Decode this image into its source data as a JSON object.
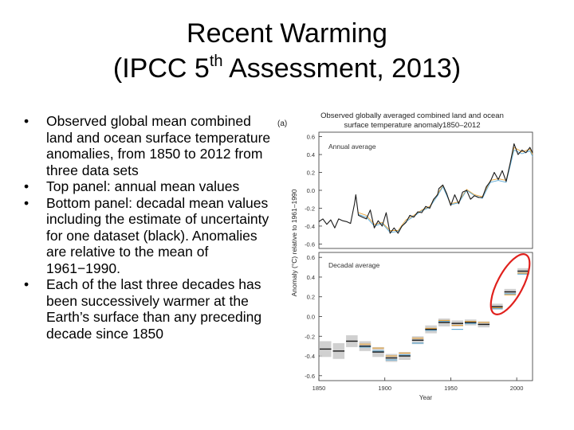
{
  "slide": {
    "title_line1": "Recent Warming",
    "title_line2_pre": "(IPCC 5",
    "title_sup": "th",
    "title_line2_post": " Assessment, 2013)",
    "bullet_char": "•",
    "bullets": [
      "Observed global mean combined land and ocean surface temperature anomalies, from 1850 to 2012 from three data sets",
      "Top panel: annual mean values",
      "Bottom panel: decadal mean values including the estimate of uncertainty for one dataset (black). Anomalies are relative to the mean of 1961−1990.",
      "Each of the last three decades has been successively warmer at the Earth’s surface than any preceding decade since 1850"
    ]
  },
  "colors": {
    "highlight_ellipse": "#e0201c",
    "uncertainty_band": "#c8c8c8",
    "series_black": "#1a1a1a",
    "series_orange": "#e8a33a",
    "series_blue": "#5aa9d6"
  },
  "chart_data": [
    {
      "type": "line",
      "panel_label": "(a)",
      "title": "Observed globally averaged combined land and ocean surface temperature anomaly1850–2012",
      "inset_label": "Annual average",
      "ylabel": "Anomaly (°C) relative to 1961–1990",
      "xlim": [
        1850,
        2012
      ],
      "ylim": [
        -0.65,
        0.65
      ],
      "yticks": [
        -0.6,
        -0.4,
        -0.2,
        0.0,
        0.2,
        0.4,
        0.6
      ],
      "ytick_labels": [
        "-0.6",
        "-0.4",
        "-0.2",
        "0.0",
        "0.2",
        "0.4",
        "0.6"
      ],
      "series": [
        {
          "x": [
            1850,
            1853,
            1856,
            1859,
            1862,
            1865,
            1868,
            1871,
            1874,
            1877,
            1878,
            1880,
            1883,
            1886,
            1889,
            1892,
            1895,
            1898,
            1901,
            1904,
            1907,
            1910,
            1913,
            1916,
            1919,
            1922,
            1925,
            1928,
            1931,
            1934,
            1937,
            1940,
            1941,
            1944,
            1947,
            1950,
            1953,
            1956,
            1959,
            1962,
            1965,
            1968,
            1971,
            1974,
            1977,
            1980,
            1983,
            1986,
            1989,
            1992,
            1995,
            1998,
            2001,
            2004,
            2007,
            2010,
            2012
          ],
          "values": [
            -0.35,
            -0.32,
            -0.38,
            -0.33,
            -0.42,
            -0.32,
            -0.34,
            -0.35,
            -0.37,
            -0.15,
            -0.05,
            -0.28,
            -0.3,
            -0.32,
            -0.22,
            -0.42,
            -0.34,
            -0.4,
            -0.25,
            -0.48,
            -0.42,
            -0.48,
            -0.4,
            -0.36,
            -0.28,
            -0.3,
            -0.24,
            -0.25,
            -0.18,
            -0.2,
            -0.1,
            -0.05,
            0.02,
            0.06,
            -0.04,
            -0.17,
            -0.05,
            -0.15,
            -0.02,
            0.0,
            -0.1,
            -0.06,
            -0.08,
            -0.08,
            0.04,
            0.1,
            0.2,
            0.12,
            0.22,
            0.1,
            0.3,
            0.52,
            0.4,
            0.45,
            0.42,
            0.48,
            0.42
          ]
        },
        {
          "x": [
            1880,
            1886,
            1892,
            1898,
            1904,
            1910,
            1916,
            1922,
            1928,
            1934,
            1940,
            1944,
            1950,
            1956,
            1962,
            1968,
            1974,
            1980,
            1986,
            1992,
            1998,
            2004,
            2010,
            2012
          ],
          "values": [
            -0.25,
            -0.28,
            -0.38,
            -0.36,
            -0.45,
            -0.45,
            -0.33,
            -0.28,
            -0.22,
            -0.18,
            -0.04,
            0.05,
            -0.15,
            -0.13,
            0.01,
            -0.05,
            -0.07,
            0.11,
            0.13,
            0.11,
            0.48,
            0.43,
            0.46,
            0.4
          ]
        },
        {
          "x": [
            1880,
            1886,
            1892,
            1898,
            1904,
            1910,
            1916,
            1922,
            1928,
            1934,
            1940,
            1944,
            1950,
            1956,
            1962,
            1968,
            1974,
            1980,
            1986,
            1992,
            1998,
            2004,
            2010,
            2012
          ],
          "values": [
            -0.27,
            -0.3,
            -0.4,
            -0.37,
            -0.47,
            -0.46,
            -0.35,
            -0.29,
            -0.23,
            -0.19,
            -0.06,
            0.04,
            -0.16,
            -0.14,
            0.0,
            -0.06,
            -0.09,
            0.09,
            0.11,
            0.09,
            0.45,
            0.41,
            0.44,
            0.38
          ]
        }
      ]
    },
    {
      "type": "bar",
      "inset_label": "Decadal average",
      "ylabel": "Anomaly (°C) relative to 1961–1990",
      "xlabel": "Year",
      "xlim": [
        1850,
        2012
      ],
      "xticks": [
        1850,
        1900,
        1950,
        2000
      ],
      "xtick_labels": [
        "1850",
        "1900",
        "1950",
        "2000"
      ],
      "ylim": [
        -0.65,
        0.65
      ],
      "yticks": [
        -0.6,
        -0.4,
        -0.2,
        0.0,
        0.2,
        0.4,
        0.6
      ],
      "ytick_labels": [
        "-0.6",
        "-0.4",
        "-0.2",
        "0.0",
        "0.2",
        "0.4",
        "0.6"
      ],
      "categories": [
        "1850s",
        "1860s",
        "1870s",
        "1880s",
        "1890s",
        "1900s",
        "1910s",
        "1920s",
        "1930s",
        "1940s",
        "1950s",
        "1960s",
        "1970s",
        "1980s",
        "1990s",
        "2000s"
      ],
      "decade_start": [
        1850,
        1860,
        1870,
        1880,
        1890,
        1900,
        1910,
        1920,
        1930,
        1940,
        1950,
        1960,
        1970,
        1980,
        1990,
        2000
      ],
      "series": [
        {
          "values": [
            -0.33,
            -0.35,
            -0.25,
            -0.3,
            -0.36,
            -0.42,
            -0.4,
            -0.24,
            -0.13,
            -0.06,
            -0.07,
            -0.06,
            -0.08,
            0.1,
            0.25,
            0.46
          ],
          "uncertainty": [
            0.08,
            0.08,
            0.06,
            0.05,
            0.05,
            0.04,
            0.04,
            0.04,
            0.04,
            0.04,
            0.03,
            0.03,
            0.03,
            0.03,
            0.03,
            0.03
          ]
        },
        {
          "values": [
            null,
            null,
            null,
            -0.28,
            -0.32,
            -0.4,
            -0.37,
            -0.22,
            -0.12,
            -0.04,
            -0.09,
            -0.05,
            -0.06,
            0.09,
            0.22,
            0.44
          ]
        },
        {
          "values": [
            null,
            null,
            null,
            -0.31,
            -0.35,
            -0.44,
            -0.39,
            -0.27,
            -0.14,
            -0.05,
            -0.13,
            -0.07,
            -0.08,
            0.08,
            0.23,
            0.43
          ]
        }
      ]
    }
  ]
}
